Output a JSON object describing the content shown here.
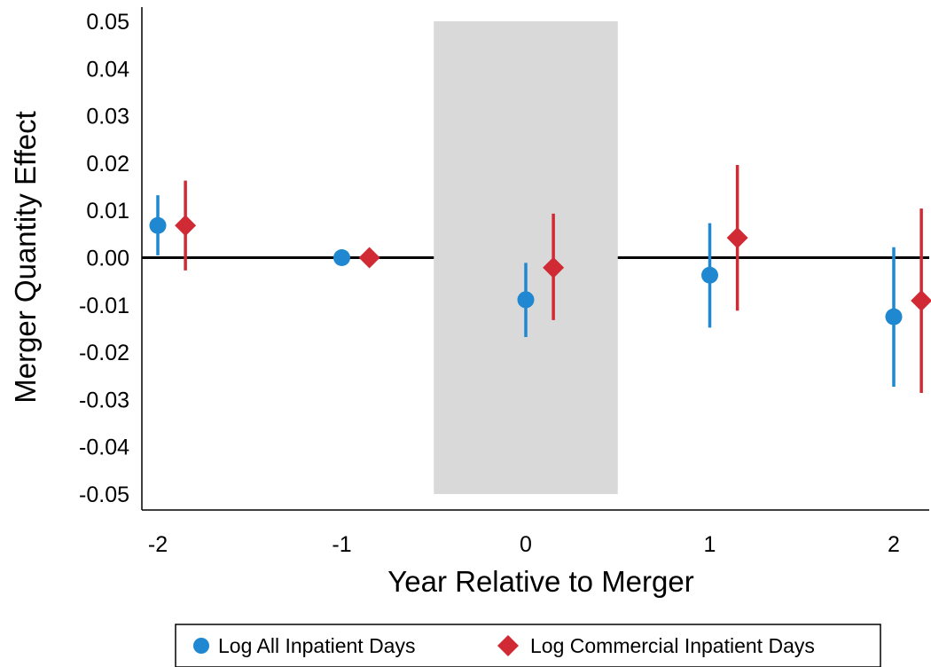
{
  "chart_data": {
    "type": "scatter",
    "title": "",
    "xlabel": "Year Relative to Merger",
    "ylabel": "Merger Quantity Effect",
    "x_ticks": [
      "-2",
      "-1",
      "0",
      "1",
      "2"
    ],
    "y_ticks": [
      "0.05",
      "0.04",
      "0.03",
      "0.02",
      "0.01",
      "0.00",
      "-0.01",
      "-0.02",
      "-0.03",
      "-0.04",
      "-0.05"
    ],
    "y_tick_values": [
      0.05,
      0.04,
      0.03,
      0.02,
      0.01,
      0.0,
      -0.01,
      -0.02,
      -0.03,
      -0.04,
      -0.05
    ],
    "xlim": [
      -2.0,
      2.2
    ],
    "ylim": [
      -0.05,
      0.05
    ],
    "reference_line": 0.0,
    "shaded_region": {
      "x_start": -0.5,
      "x_end": 0.5,
      "y_start": -0.05,
      "y_end": 0.05,
      "color": "#d9d9d9"
    },
    "legend_position": "bottom",
    "series": [
      {
        "name": "Log All Inpatient Days",
        "marker": "circle",
        "color": "#1f88d1",
        "points": [
          {
            "x": -2,
            "y": 0.0068,
            "lo": 0.0005,
            "hi": 0.0132
          },
          {
            "x": -1,
            "y": 0.0,
            "lo": 0.0,
            "hi": 0.0
          },
          {
            "x": 0,
            "y": -0.0089,
            "lo": -0.0168,
            "hi": -0.0011
          },
          {
            "x": 1,
            "y": -0.0037,
            "lo": -0.0148,
            "hi": 0.0073
          },
          {
            "x": 2,
            "y": -0.0125,
            "lo": -0.0273,
            "hi": 0.0022
          }
        ]
      },
      {
        "name": "Log Commercial Inpatient Days",
        "marker": "diamond",
        "color": "#d02b35",
        "points": [
          {
            "x": -1.85,
            "y": 0.0068,
            "lo": -0.0027,
            "hi": 0.0163
          },
          {
            "x": -0.85,
            "y": 0.0,
            "lo": 0.0,
            "hi": 0.0
          },
          {
            "x": 0.15,
            "y": -0.0021,
            "lo": -0.0132,
            "hi": 0.0093
          },
          {
            "x": 1.15,
            "y": 0.0042,
            "lo": -0.0112,
            "hi": 0.0196
          },
          {
            "x": 2.15,
            "y": -0.0091,
            "lo": -0.0286,
            "hi": 0.0104
          }
        ]
      }
    ]
  }
}
